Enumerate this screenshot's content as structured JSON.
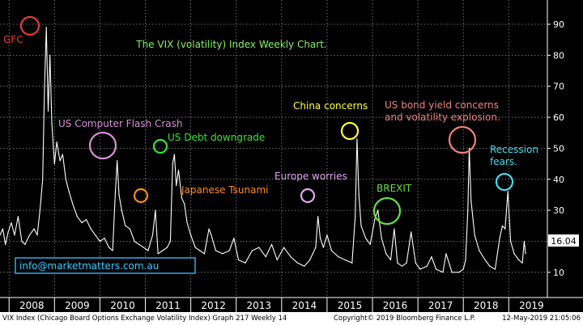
{
  "chart_data": {
    "type": "line",
    "title": "The VIX (volatility) Index Weekly Chart.",
    "ylim": [
      0,
      100
    ],
    "yticks": [
      10,
      20,
      30,
      40,
      50,
      60,
      70,
      80,
      90
    ],
    "xlim": [
      2007.8,
      2019.85
    ],
    "xticks": [
      "2008",
      "2009",
      "2010",
      "2011",
      "2012",
      "2013",
      "2014",
      "2015",
      "2016",
      "2017",
      "2018",
      "2019"
    ],
    "grid": true,
    "last_value_label": "16.04",
    "series": [
      {
        "points": [
          [
            2007.8,
            22
          ],
          [
            2007.86,
            24
          ],
          [
            2007.92,
            19
          ],
          [
            2007.98,
            23
          ],
          [
            2008.05,
            26
          ],
          [
            2008.12,
            22
          ],
          [
            2008.2,
            28
          ],
          [
            2008.28,
            20
          ],
          [
            2008.35,
            19
          ],
          [
            2008.45,
            22
          ],
          [
            2008.55,
            24
          ],
          [
            2008.62,
            22
          ],
          [
            2008.68,
            30
          ],
          [
            2008.74,
            40
          ],
          [
            2008.78,
            70
          ],
          [
            2008.82,
            89
          ],
          [
            2008.86,
            62
          ],
          [
            2008.9,
            80
          ],
          [
            2008.94,
            58
          ],
          [
            2009.0,
            45
          ],
          [
            2009.05,
            52
          ],
          [
            2009.12,
            46
          ],
          [
            2009.18,
            48
          ],
          [
            2009.25,
            40
          ],
          [
            2009.32,
            36
          ],
          [
            2009.4,
            32
          ],
          [
            2009.5,
            28
          ],
          [
            2009.6,
            26
          ],
          [
            2009.7,
            27
          ],
          [
            2009.8,
            24
          ],
          [
            2009.9,
            22
          ],
          [
            2010.0,
            20
          ],
          [
            2010.1,
            21
          ],
          [
            2010.2,
            18
          ],
          [
            2010.28,
            17
          ],
          [
            2010.34,
            36
          ],
          [
            2010.38,
            46
          ],
          [
            2010.42,
            35
          ],
          [
            2010.48,
            30
          ],
          [
            2010.56,
            25
          ],
          [
            2010.66,
            24
          ],
          [
            2010.76,
            20
          ],
          [
            2010.86,
            19
          ],
          [
            2010.96,
            18
          ],
          [
            2011.06,
            17
          ],
          [
            2011.16,
            22
          ],
          [
            2011.22,
            30
          ],
          [
            2011.28,
            16
          ],
          [
            2011.38,
            17
          ],
          [
            2011.48,
            18
          ],
          [
            2011.55,
            20
          ],
          [
            2011.6,
            45
          ],
          [
            2011.64,
            48
          ],
          [
            2011.68,
            38
          ],
          [
            2011.73,
            43
          ],
          [
            2011.8,
            34
          ],
          [
            2011.86,
            32
          ],
          [
            2011.92,
            26
          ],
          [
            2012.0,
            22
          ],
          [
            2012.1,
            18
          ],
          [
            2012.2,
            17
          ],
          [
            2012.3,
            16
          ],
          [
            2012.4,
            24
          ],
          [
            2012.45,
            22
          ],
          [
            2012.55,
            17
          ],
          [
            2012.7,
            16
          ],
          [
            2012.85,
            17
          ],
          [
            2012.95,
            21
          ],
          [
            2013.05,
            14
          ],
          [
            2013.2,
            13
          ],
          [
            2013.35,
            17
          ],
          [
            2013.5,
            18
          ],
          [
            2013.65,
            15
          ],
          [
            2013.78,
            19
          ],
          [
            2013.9,
            14
          ],
          [
            2014.05,
            18
          ],
          [
            2014.2,
            15
          ],
          [
            2014.35,
            13
          ],
          [
            2014.5,
            12
          ],
          [
            2014.62,
            14
          ],
          [
            2014.75,
            18
          ],
          [
            2014.8,
            28
          ],
          [
            2014.85,
            21
          ],
          [
            2014.92,
            18
          ],
          [
            2015.0,
            22
          ],
          [
            2015.1,
            17
          ],
          [
            2015.25,
            15
          ],
          [
            2015.4,
            14
          ],
          [
            2015.55,
            13
          ],
          [
            2015.62,
            28
          ],
          [
            2015.66,
            53
          ],
          [
            2015.7,
            35
          ],
          [
            2015.75,
            25
          ],
          [
            2015.85,
            21
          ],
          [
            2015.95,
            19
          ],
          [
            2016.05,
            27
          ],
          [
            2016.12,
            30
          ],
          [
            2016.2,
            21
          ],
          [
            2016.3,
            16
          ],
          [
            2016.4,
            14
          ],
          [
            2016.48,
            24
          ],
          [
            2016.55,
            13
          ],
          [
            2016.65,
            12
          ],
          [
            2016.75,
            13
          ],
          [
            2016.85,
            23
          ],
          [
            2016.95,
            13
          ],
          [
            2017.05,
            11
          ],
          [
            2017.2,
            12
          ],
          [
            2017.3,
            15
          ],
          [
            2017.4,
            11
          ],
          [
            2017.55,
            10
          ],
          [
            2017.62,
            16
          ],
          [
            2017.75,
            10
          ],
          [
            2017.9,
            10
          ],
          [
            2018.0,
            11
          ],
          [
            2018.05,
            14
          ],
          [
            2018.1,
            30
          ],
          [
            2018.13,
            50
          ],
          [
            2018.17,
            33
          ],
          [
            2018.25,
            22
          ],
          [
            2018.35,
            17
          ],
          [
            2018.48,
            14
          ],
          [
            2018.58,
            12
          ],
          [
            2018.7,
            11
          ],
          [
            2018.8,
            21
          ],
          [
            2018.86,
            25
          ],
          [
            2018.92,
            24
          ],
          [
            2018.98,
            36
          ],
          [
            2019.04,
            20
          ],
          [
            2019.12,
            16
          ],
          [
            2019.22,
            14
          ],
          [
            2019.3,
            13
          ],
          [
            2019.34,
            20
          ],
          [
            2019.37,
            16
          ]
        ]
      }
    ],
    "annotations": [
      {
        "name": "gfc",
        "text": "GFC",
        "color": "#e83a3a"
      },
      {
        "name": "us-computer-flash-crash",
        "text": "US Computer Flash Crash",
        "color": "#d68fd6"
      },
      {
        "name": "japanese-tsunami",
        "text": "Japanese Tsunami",
        "color": "#ff8c1a"
      },
      {
        "name": "us-debt-downgrade",
        "text": "US Debt downgrade",
        "color": "#33e633"
      },
      {
        "name": "europe-worries",
        "text": "Europe worries",
        "color": "#e0a8f0"
      },
      {
        "name": "china-concerns",
        "text": "China concerns",
        "color": "#ffff33"
      },
      {
        "name": "brexit",
        "text": "BREXIT",
        "color": "#66dd44"
      },
      {
        "name": "us-bond-yield",
        "text": "US bond yield concerns",
        "text2": "and volatility explosion.",
        "color": "#f08080"
      },
      {
        "name": "recession-fears",
        "text": "Recession",
        "text2": "fears.",
        "color": "#44ddee"
      }
    ],
    "title_color": "#88ee66",
    "watermark": "info@marketmatters.com.au"
  },
  "footer": {
    "left": "VIX Index (Chicago Board Options Exchange Volatility Index) Graph 217  Weekly 14",
    "center": "Copyright© 2019 Bloomberg Finance L.P.",
    "right": "12-May-2019 21:05:06"
  }
}
